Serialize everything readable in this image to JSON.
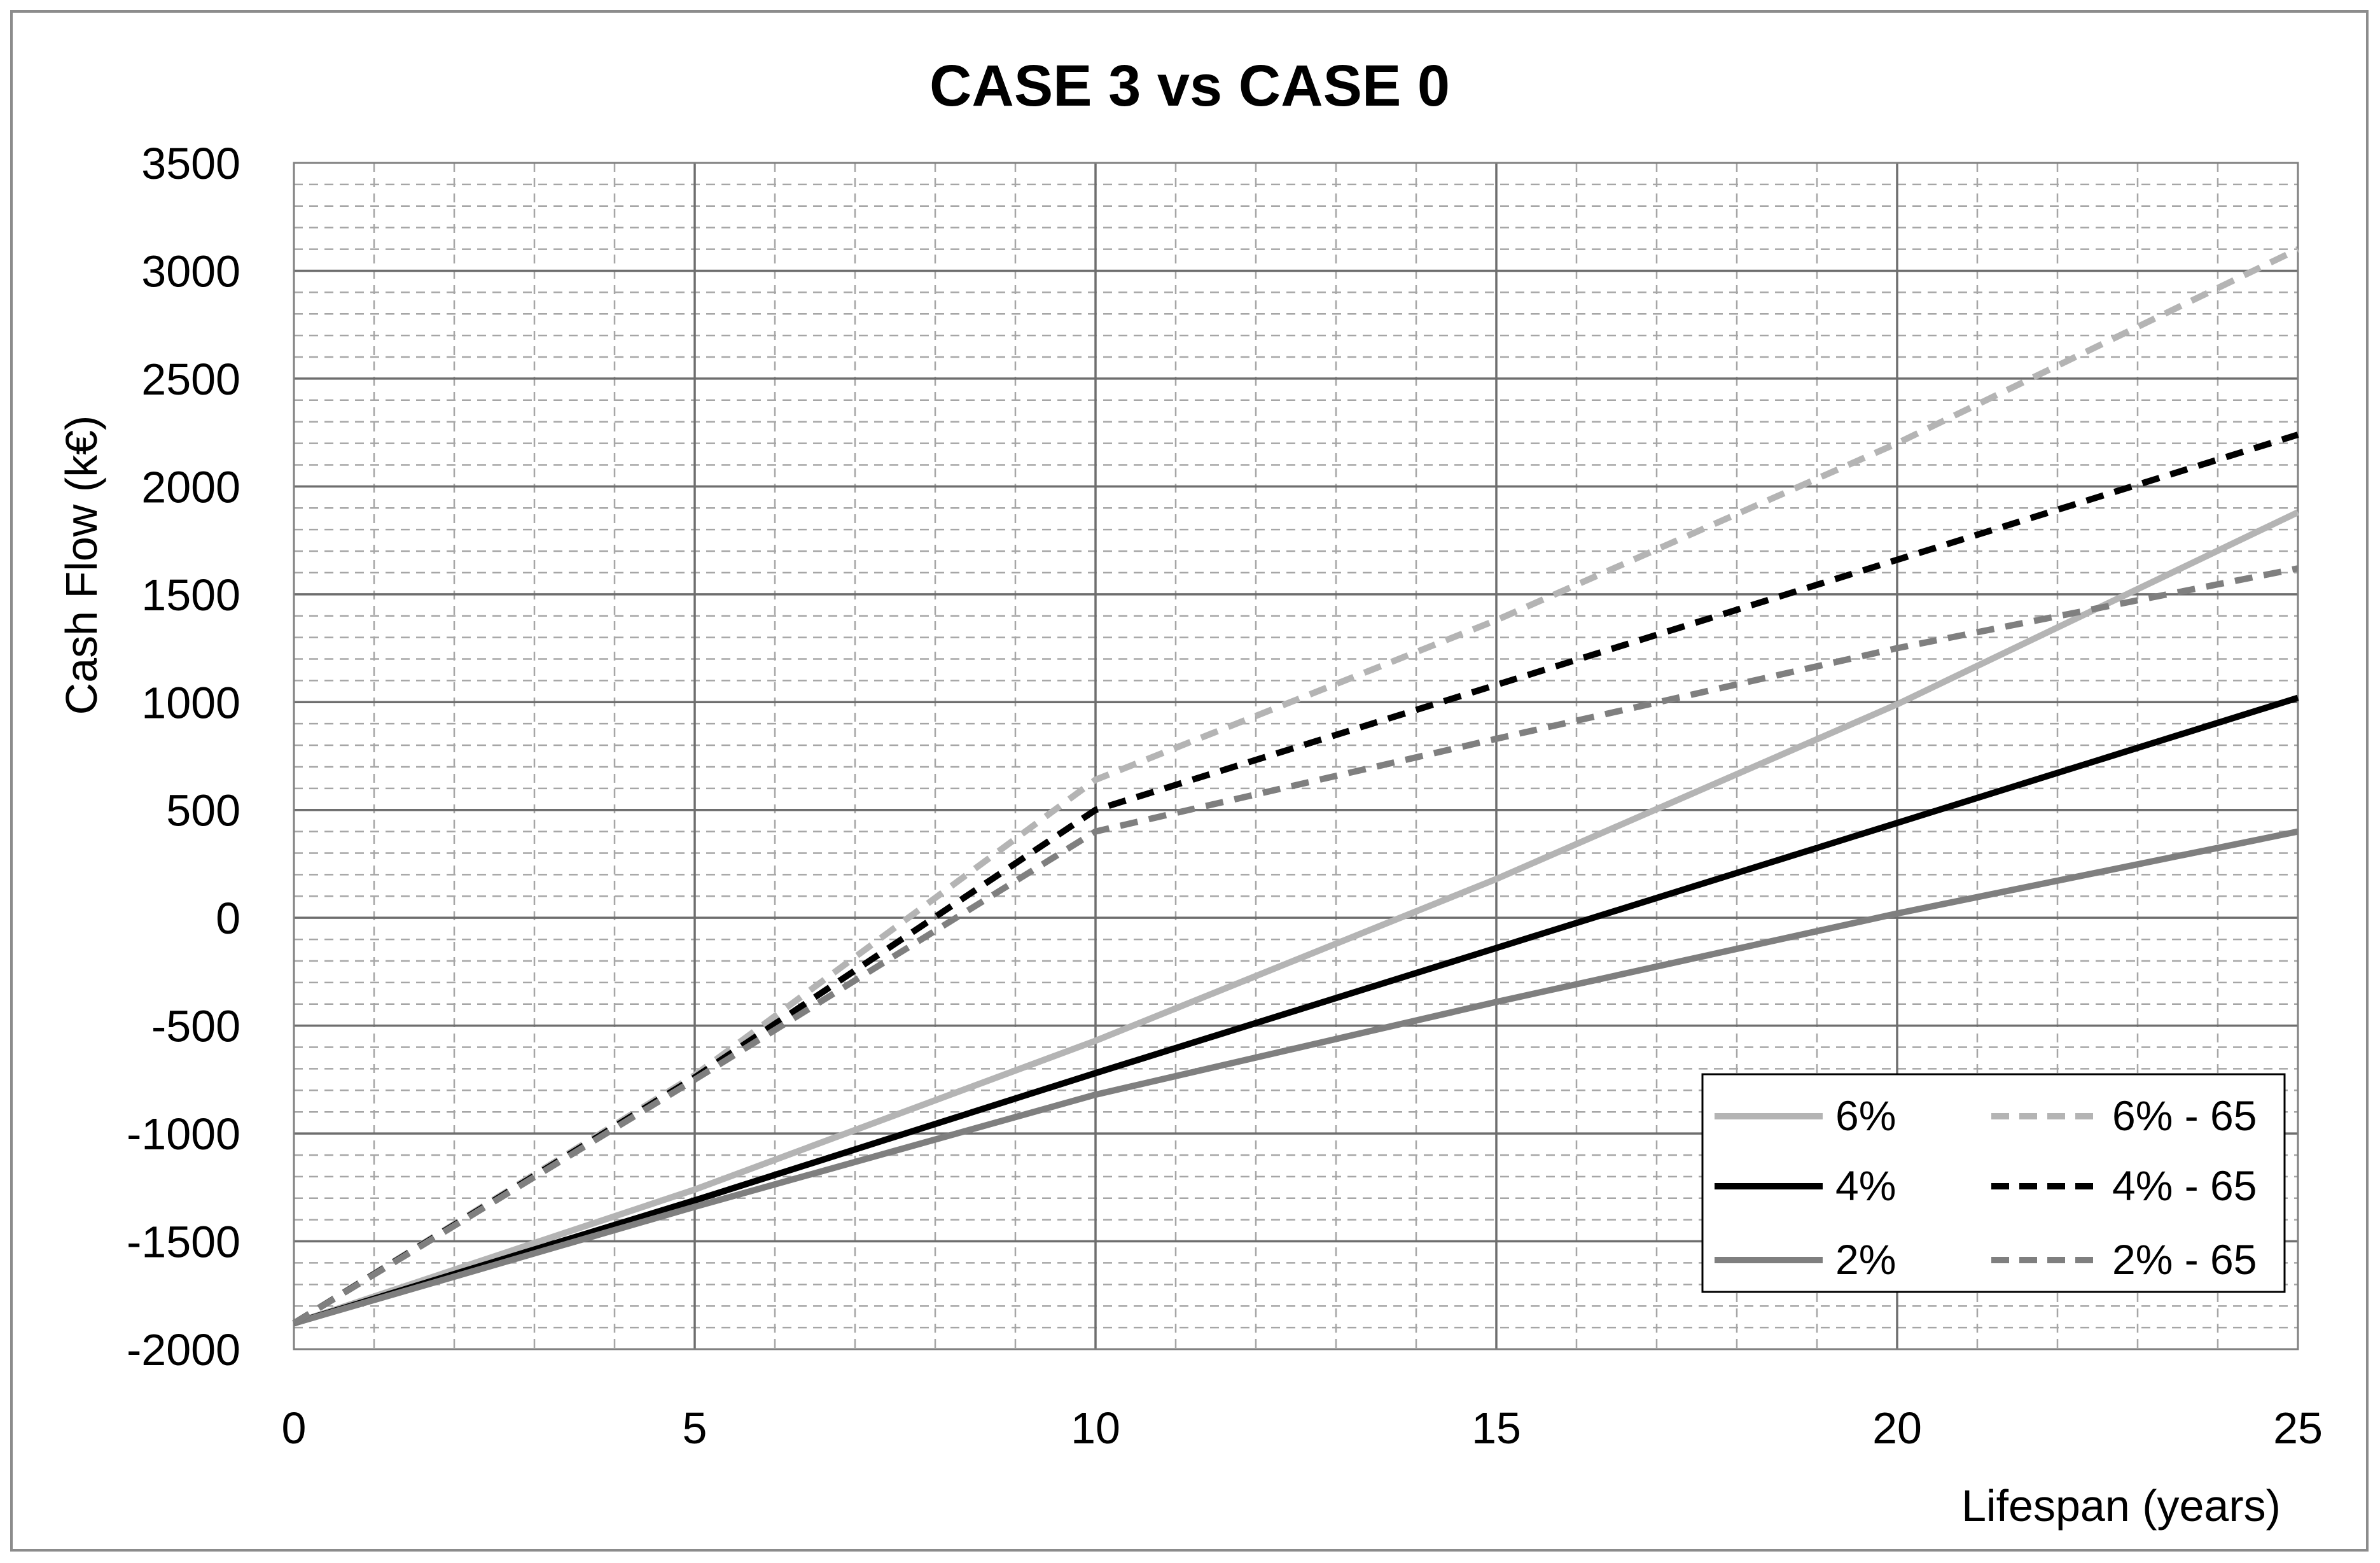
{
  "chart_data": {
    "type": "line",
    "title": "CASE 3 vs CASE 0",
    "xlabel": "Lifespan (years)",
    "ylabel": "Cash Flow (k€)",
    "xlim": [
      0,
      25
    ],
    "ylim": [
      -2000,
      3500
    ],
    "x_ticks": [
      "0",
      "5",
      "10",
      "15",
      "20",
      "25"
    ],
    "y_ticks": [
      "-2000",
      "-1500",
      "-1000",
      "-500",
      "0",
      "500",
      "1000",
      "1500",
      "2000",
      "2500",
      "3000",
      "3500"
    ],
    "grid": true,
    "legend_position": "bottom-right",
    "series": [
      {
        "name": "6%",
        "color": "#b4b4b4",
        "dash": "solid",
        "points": [
          [
            0,
            -1880
          ],
          [
            5,
            -1260
          ],
          [
            10,
            -570
          ],
          [
            15,
            180
          ],
          [
            20,
            990
          ],
          [
            25,
            1880
          ]
        ]
      },
      {
        "name": "4%",
        "color": "#000000",
        "dash": "solid",
        "points": [
          [
            0,
            -1880
          ],
          [
            5,
            -1310
          ],
          [
            10,
            -720
          ],
          [
            15,
            -140
          ],
          [
            20,
            440
          ],
          [
            25,
            1020
          ]
        ]
      },
      {
        "name": "2%",
        "color": "#7f7f7f",
        "dash": "solid",
        "points": [
          [
            0,
            -1880
          ],
          [
            5,
            -1340
          ],
          [
            10,
            -820
          ],
          [
            15,
            -390
          ],
          [
            20,
            20
          ],
          [
            25,
            400
          ]
        ]
      },
      {
        "name": "6% - 65",
        "color": "#b4b4b4",
        "dash": "dashed",
        "points": [
          [
            0,
            -1880
          ],
          [
            5,
            -730
          ],
          [
            10,
            640
          ],
          [
            15,
            1380
          ],
          [
            20,
            2200
          ],
          [
            25,
            3100
          ]
        ]
      },
      {
        "name": "4% - 65",
        "color": "#000000",
        "dash": "dashed",
        "points": [
          [
            0,
            -1880
          ],
          [
            5,
            -740
          ],
          [
            10,
            500
          ],
          [
            15,
            1080
          ],
          [
            20,
            1660
          ],
          [
            25,
            2240
          ]
        ]
      },
      {
        "name": "2% - 65",
        "color": "#7f7f7f",
        "dash": "dashed",
        "points": [
          [
            0,
            -1880
          ],
          [
            5,
            -750
          ],
          [
            10,
            400
          ],
          [
            15,
            830
          ],
          [
            20,
            1250
          ],
          [
            25,
            1620
          ]
        ]
      }
    ]
  }
}
